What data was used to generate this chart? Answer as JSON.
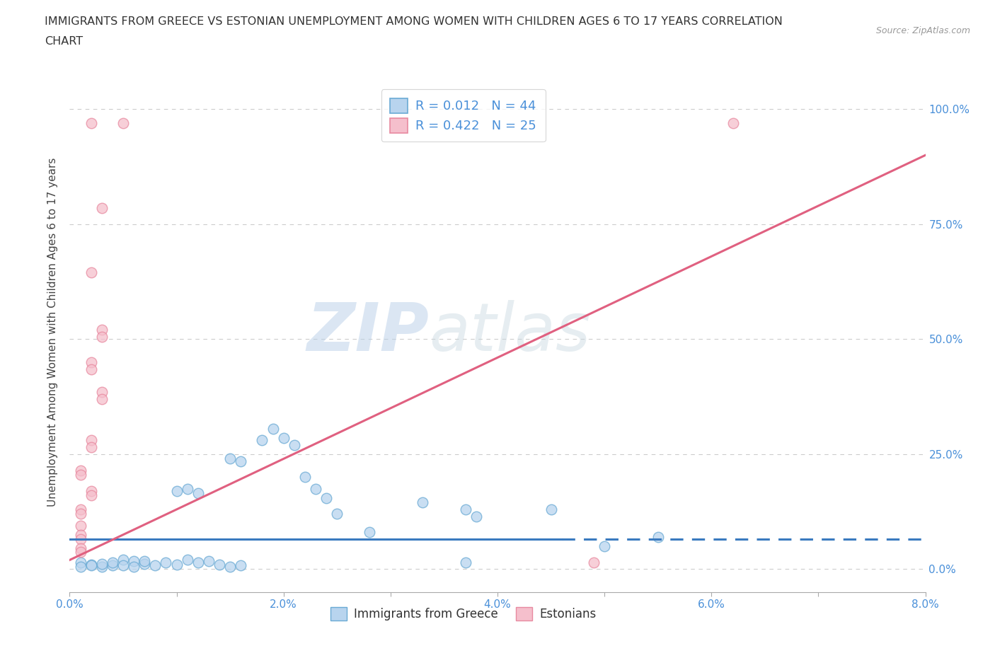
{
  "title_line1": "IMMIGRANTS FROM GREECE VS ESTONIAN UNEMPLOYMENT AMONG WOMEN WITH CHILDREN AGES 6 TO 17 YEARS CORRELATION",
  "title_line2": "CHART",
  "source": "Source: ZipAtlas.com",
  "ylabel": "Unemployment Among Women with Children Ages 6 to 17 years",
  "xlabel_blue": "Immigrants from Greece",
  "xlabel_pink": "Estonians",
  "xlim": [
    0.0,
    0.08
  ],
  "ylim": [
    -0.05,
    1.08
  ],
  "yticks": [
    0.0,
    0.25,
    0.5,
    0.75,
    1.0
  ],
  "ytick_labels": [
    "0.0%",
    "25.0%",
    "50.0%",
    "75.0%",
    "100.0%"
  ],
  "xticks": [
    0.0,
    0.01,
    0.02,
    0.03,
    0.04,
    0.05,
    0.06,
    0.07,
    0.08
  ],
  "xtick_labels": [
    "0.0%",
    "",
    "2.0%",
    "",
    "4.0%",
    "",
    "6.0%",
    "",
    "8.0%"
  ],
  "R_blue": 0.012,
  "N_blue": 44,
  "R_pink": 0.422,
  "N_pink": 25,
  "blue_fill": "#b8d4ee",
  "pink_fill": "#f5bfcc",
  "blue_edge": "#6aaad4",
  "pink_edge": "#e88aa0",
  "blue_line_color": "#3a7abf",
  "pink_line_color": "#e06080",
  "blue_scatter": [
    [
      0.001,
      0.015
    ],
    [
      0.002,
      0.01
    ],
    [
      0.003,
      0.005
    ],
    [
      0.004,
      0.008
    ],
    [
      0.005,
      0.02
    ],
    [
      0.006,
      0.018
    ],
    [
      0.007,
      0.012
    ],
    [
      0.008,
      0.008
    ],
    [
      0.009,
      0.015
    ],
    [
      0.01,
      0.01
    ],
    [
      0.011,
      0.02
    ],
    [
      0.012,
      0.015
    ],
    [
      0.013,
      0.018
    ],
    [
      0.014,
      0.01
    ],
    [
      0.015,
      0.005
    ],
    [
      0.016,
      0.008
    ],
    [
      0.001,
      0.005
    ],
    [
      0.002,
      0.008
    ],
    [
      0.003,
      0.012
    ],
    [
      0.004,
      0.015
    ],
    [
      0.005,
      0.008
    ],
    [
      0.006,
      0.005
    ],
    [
      0.007,
      0.018
    ],
    [
      0.018,
      0.28
    ],
    [
      0.019,
      0.305
    ],
    [
      0.02,
      0.285
    ],
    [
      0.021,
      0.27
    ],
    [
      0.022,
      0.2
    ],
    [
      0.023,
      0.175
    ],
    [
      0.024,
      0.155
    ],
    [
      0.01,
      0.17
    ],
    [
      0.011,
      0.175
    ],
    [
      0.012,
      0.165
    ],
    [
      0.015,
      0.24
    ],
    [
      0.016,
      0.235
    ],
    [
      0.025,
      0.12
    ],
    [
      0.028,
      0.08
    ],
    [
      0.037,
      0.13
    ],
    [
      0.038,
      0.115
    ],
    [
      0.033,
      0.145
    ],
    [
      0.045,
      0.13
    ],
    [
      0.055,
      0.07
    ],
    [
      0.037,
      0.015
    ],
    [
      0.05,
      0.05
    ]
  ],
  "pink_scatter": [
    [
      0.002,
      0.97
    ],
    [
      0.005,
      0.97
    ],
    [
      0.003,
      0.785
    ],
    [
      0.002,
      0.645
    ],
    [
      0.003,
      0.52
    ],
    [
      0.003,
      0.505
    ],
    [
      0.002,
      0.45
    ],
    [
      0.002,
      0.435
    ],
    [
      0.003,
      0.385
    ],
    [
      0.003,
      0.37
    ],
    [
      0.002,
      0.28
    ],
    [
      0.002,
      0.265
    ],
    [
      0.001,
      0.215
    ],
    [
      0.001,
      0.205
    ],
    [
      0.002,
      0.17
    ],
    [
      0.002,
      0.16
    ],
    [
      0.001,
      0.13
    ],
    [
      0.001,
      0.12
    ],
    [
      0.001,
      0.095
    ],
    [
      0.001,
      0.075
    ],
    [
      0.001,
      0.065
    ],
    [
      0.001,
      0.045
    ],
    [
      0.001,
      0.038
    ],
    [
      0.049,
      0.015
    ],
    [
      0.062,
      0.97
    ]
  ],
  "watermark_zip": "ZIP",
  "watermark_atlas": "atlas",
  "grid_color": "#cccccc",
  "background_color": "#ffffff",
  "tick_color": "#4a90d9"
}
